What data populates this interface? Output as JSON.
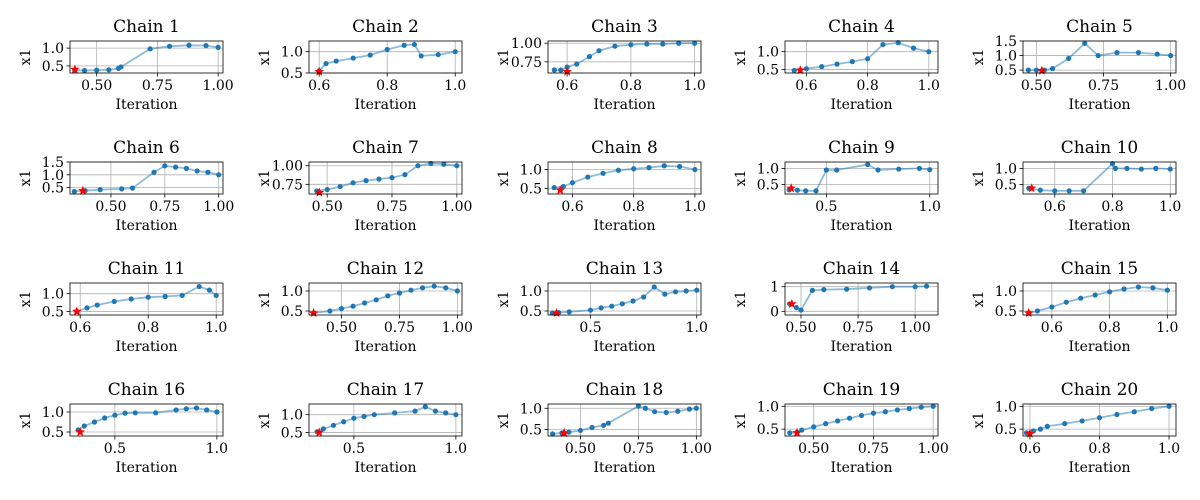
{
  "colors": {
    "series": "#1f77b4",
    "marker": "#ff0000",
    "grid": "#b0b0b0"
  },
  "chart_data": [
    {
      "type": "line",
      "title": "Chain 1",
      "xlabel": "Iteration",
      "ylabel": "x1",
      "xlim": [
        0.39,
        1.02
      ],
      "ylim": [
        0.3,
        1.2
      ],
      "xticks": [
        0.5,
        0.75,
        1.0
      ],
      "xtick_labels": [
        "0.50",
        "0.75",
        "1.00"
      ],
      "yticks": [
        0.5,
        1.0
      ],
      "ytick_labels": [
        "0.5",
        "1.0"
      ],
      "x": [
        0.41,
        0.45,
        0.5,
        0.55,
        0.59,
        0.6,
        0.72,
        0.8,
        0.88,
        0.95,
        1.0
      ],
      "y": [
        0.38,
        0.37,
        0.38,
        0.39,
        0.43,
        0.47,
        0.98,
        1.05,
        1.08,
        1.07,
        1.02
      ],
      "star": [
        0.41,
        0.4
      ]
    },
    {
      "type": "line",
      "title": "Chain 2",
      "xlabel": "Iteration",
      "ylabel": "x1",
      "xlim": [
        0.57,
        1.02
      ],
      "ylim": [
        0.5,
        1.25
      ],
      "xticks": [
        0.6,
        0.8,
        1.0
      ],
      "xtick_labels": [
        "0.6",
        "0.8",
        "1.0"
      ],
      "yticks": [
        0.5,
        1.0
      ],
      "ytick_labels": [
        "0.5",
        "1.0"
      ],
      "x": [
        0.6,
        0.62,
        0.65,
        0.7,
        0.75,
        0.8,
        0.85,
        0.88,
        0.9,
        0.95,
        1.0
      ],
      "y": [
        0.55,
        0.72,
        0.78,
        0.85,
        0.92,
        1.05,
        1.15,
        1.17,
        0.9,
        0.93,
        1.0
      ],
      "star": [
        0.6,
        0.53
      ]
    },
    {
      "type": "line",
      "title": "Chain 3",
      "xlabel": "Iteration",
      "ylabel": "x1",
      "xlim": [
        0.54,
        1.02
      ],
      "ylim": [
        0.6,
        1.03
      ],
      "xticks": [
        0.6,
        0.8,
        1.0
      ],
      "xtick_labels": [
        "0.6",
        "0.8",
        "1.0"
      ],
      "yticks": [
        0.75,
        1.0
      ],
      "ytick_labels": [
        "0.75",
        "1.00"
      ],
      "x": [
        0.56,
        0.58,
        0.6,
        0.63,
        0.67,
        0.7,
        0.75,
        0.8,
        0.85,
        0.9,
        0.95,
        1.0
      ],
      "y": [
        0.64,
        0.64,
        0.68,
        0.72,
        0.82,
        0.9,
        0.96,
        0.98,
        0.99,
        0.99,
        1.0,
        1.0
      ],
      "star": [
        0.6,
        0.62
      ]
    },
    {
      "type": "line",
      "title": "Chain 4",
      "xlabel": "Iteration",
      "ylabel": "x1",
      "xlim": [
        0.53,
        1.03
      ],
      "ylim": [
        0.4,
        1.3
      ],
      "xticks": [
        0.6,
        0.8,
        1.0
      ],
      "xtick_labels": [
        "0.6",
        "0.8",
        "1.0"
      ],
      "yticks": [
        0.5,
        1.0
      ],
      "ytick_labels": [
        "0.5",
        "1.0"
      ],
      "x": [
        0.56,
        0.6,
        0.65,
        0.7,
        0.75,
        0.8,
        0.85,
        0.9,
        0.95,
        1.0
      ],
      "y": [
        0.47,
        0.52,
        0.58,
        0.65,
        0.72,
        0.8,
        1.2,
        1.25,
        1.1,
        1.0
      ],
      "star": [
        0.58,
        0.48
      ]
    },
    {
      "type": "line",
      "title": "Chain 5",
      "xlabel": "Iteration",
      "ylabel": "x1",
      "xlim": [
        0.45,
        1.02
      ],
      "ylim": [
        0.4,
        1.5
      ],
      "xticks": [
        0.5,
        0.75,
        1.0
      ],
      "xtick_labels": [
        "0.50",
        "0.75",
        "1.00"
      ],
      "yticks": [
        0.5,
        1.0,
        1.5
      ],
      "ytick_labels": [
        "0.5",
        "1.0",
        "1.5"
      ],
      "x": [
        0.47,
        0.5,
        0.53,
        0.56,
        0.62,
        0.68,
        0.73,
        0.8,
        0.88,
        0.95,
        1.0
      ],
      "y": [
        0.5,
        0.5,
        0.5,
        0.55,
        0.9,
        1.42,
        1.0,
        1.1,
        1.1,
        1.05,
        1.0
      ],
      "star": [
        0.52,
        0.48
      ]
    },
    {
      "type": "line",
      "title": "Chain 6",
      "xlabel": "Iteration",
      "ylabel": "x1",
      "xlim": [
        0.31,
        1.02
      ],
      "ylim": [
        0.25,
        1.5
      ],
      "xticks": [
        0.5,
        0.75,
        1.0
      ],
      "xtick_labels": [
        "0.50",
        "0.75",
        "1.00"
      ],
      "yticks": [
        0.5,
        1.0,
        1.5
      ],
      "ytick_labels": [
        "0.5",
        "1.0",
        "1.5"
      ],
      "x": [
        0.33,
        0.38,
        0.45,
        0.55,
        0.6,
        0.7,
        0.75,
        0.8,
        0.85,
        0.9,
        0.95,
        1.0
      ],
      "y": [
        0.35,
        0.38,
        0.42,
        0.45,
        0.48,
        1.1,
        1.35,
        1.3,
        1.25,
        1.15,
        1.1,
        1.0
      ],
      "star": [
        0.37,
        0.38
      ]
    },
    {
      "type": "line",
      "title": "Chain 7",
      "xlabel": "Iteration",
      "ylabel": "x1",
      "xlim": [
        0.43,
        1.02
      ],
      "ylim": [
        0.62,
        1.05
      ],
      "xticks": [
        0.5,
        0.75,
        1.0
      ],
      "xtick_labels": [
        "0.50",
        "0.75",
        "1.00"
      ],
      "yticks": [
        0.75,
        1.0
      ],
      "ytick_labels": [
        "0.75",
        "1.00"
      ],
      "x": [
        0.46,
        0.5,
        0.55,
        0.6,
        0.65,
        0.7,
        0.75,
        0.8,
        0.85,
        0.9,
        0.95,
        1.0
      ],
      "y": [
        0.66,
        0.68,
        0.72,
        0.77,
        0.8,
        0.82,
        0.84,
        0.88,
        1.0,
        1.03,
        1.02,
        1.0
      ],
      "star": [
        0.47,
        0.64
      ]
    },
    {
      "type": "line",
      "title": "Chain 8",
      "xlabel": "Iteration",
      "ylabel": "x1",
      "xlim": [
        0.52,
        1.02
      ],
      "ylim": [
        0.35,
        1.2
      ],
      "xticks": [
        0.6,
        0.8,
        1.0
      ],
      "xtick_labels": [
        "0.6",
        "0.8",
        "1.0"
      ],
      "yticks": [
        0.5,
        1.0
      ],
      "ytick_labels": [
        "0.5",
        "1.0"
      ],
      "x": [
        0.54,
        0.57,
        0.6,
        0.65,
        0.7,
        0.75,
        0.8,
        0.85,
        0.9,
        0.95,
        1.0
      ],
      "y": [
        0.52,
        0.55,
        0.65,
        0.8,
        0.9,
        0.98,
        1.02,
        1.05,
        1.1,
        1.08,
        1.0
      ],
      "star": [
        0.56,
        0.45
      ]
    },
    {
      "type": "line",
      "title": "Chain 9",
      "xlabel": "Iteration",
      "ylabel": "x1",
      "xlim": [
        0.3,
        1.04
      ],
      "ylim": [
        0.2,
        1.2
      ],
      "xticks": [
        0.5,
        1.0
      ],
      "xtick_labels": [
        "0.5",
        "1.0"
      ],
      "yticks": [
        0.5,
        1.0
      ],
      "ytick_labels": [
        "0.5",
        "1.0"
      ],
      "x": [
        0.32,
        0.36,
        0.4,
        0.45,
        0.5,
        0.55,
        0.7,
        0.75,
        0.85,
        0.95,
        1.0
      ],
      "y": [
        0.33,
        0.32,
        0.3,
        0.3,
        0.95,
        0.95,
        1.12,
        0.95,
        0.98,
        1.0,
        0.96
      ],
      "star": [
        0.33,
        0.38
      ]
    },
    {
      "type": "line",
      "title": "Chain 10",
      "xlabel": "Iteration",
      "ylabel": "x1",
      "xlim": [
        0.49,
        1.02
      ],
      "ylim": [
        0.2,
        1.2
      ],
      "xticks": [
        0.6,
        0.8,
        1.0
      ],
      "xtick_labels": [
        "0.6",
        "0.8",
        "1.0"
      ],
      "yticks": [
        0.5,
        1.0
      ],
      "ytick_labels": [
        "0.5",
        "1.0"
      ],
      "x": [
        0.51,
        0.55,
        0.6,
        0.65,
        0.7,
        0.8,
        0.81,
        0.85,
        0.9,
        0.95,
        1.0
      ],
      "y": [
        0.38,
        0.32,
        0.3,
        0.3,
        0.3,
        1.15,
        1.0,
        1.0,
        0.98,
        1.0,
        0.98
      ],
      "star": [
        0.52,
        0.38
      ]
    },
    {
      "type": "line",
      "title": "Chain 11",
      "xlabel": "Iteration",
      "ylabel": "x1",
      "xlim": [
        0.57,
        1.02
      ],
      "ylim": [
        0.4,
        1.3
      ],
      "xticks": [
        0.6,
        0.8,
        1.0
      ],
      "xtick_labels": [
        "0.6",
        "0.8",
        "1.0"
      ],
      "yticks": [
        0.5,
        1.0
      ],
      "ytick_labels": [
        "0.5",
        "1.0"
      ],
      "x": [
        0.59,
        0.62,
        0.65,
        0.7,
        0.75,
        0.8,
        0.85,
        0.9,
        0.95,
        0.98,
        1.0
      ],
      "y": [
        0.5,
        0.6,
        0.68,
        0.78,
        0.85,
        0.9,
        0.92,
        0.95,
        1.2,
        1.1,
        0.95
      ],
      "star": [
        0.59,
        0.5
      ]
    },
    {
      "type": "line",
      "title": "Chain 12",
      "xlabel": "Iteration",
      "ylabel": "x1",
      "xlim": [
        0.36,
        1.02
      ],
      "ylim": [
        0.4,
        1.2
      ],
      "xticks": [
        0.5,
        0.75,
        1.0
      ],
      "xtick_labels": [
        "0.50",
        "0.75",
        "1.00"
      ],
      "yticks": [
        0.5,
        1.0
      ],
      "ytick_labels": [
        "0.5",
        "1.0"
      ],
      "x": [
        0.38,
        0.45,
        0.5,
        0.55,
        0.6,
        0.65,
        0.7,
        0.75,
        0.8,
        0.85,
        0.9,
        0.95,
        1.0
      ],
      "y": [
        0.45,
        0.5,
        0.56,
        0.62,
        0.7,
        0.78,
        0.88,
        0.95,
        1.02,
        1.08,
        1.12,
        1.08,
        1.0
      ],
      "star": [
        0.38,
        0.45
      ]
    },
    {
      "type": "line",
      "title": "Chain 13",
      "xlabel": "Iteration",
      "ylabel": "x1",
      "xlim": [
        0.3,
        1.02
      ],
      "ylim": [
        0.4,
        1.2
      ],
      "xticks": [
        0.5,
        1.0
      ],
      "xtick_labels": [
        "0.5",
        "1.0"
      ],
      "yticks": [
        0.5,
        1.0
      ],
      "ytick_labels": [
        "0.5",
        "1.0"
      ],
      "x": [
        0.32,
        0.35,
        0.4,
        0.5,
        0.55,
        0.6,
        0.65,
        0.7,
        0.75,
        0.8,
        0.85,
        0.9,
        0.95,
        1.0
      ],
      "y": [
        0.45,
        0.46,
        0.48,
        0.52,
        0.58,
        0.62,
        0.68,
        0.75,
        0.85,
        1.1,
        0.92,
        0.98,
        1.0,
        1.02
      ],
      "star": [
        0.34,
        0.45
      ]
    },
    {
      "type": "line",
      "title": "Chain 14",
      "xlabel": "Iteration",
      "ylabel": "x1",
      "xlim": [
        0.43,
        1.1
      ],
      "ylim": [
        -0.15,
        1.15
      ],
      "xticks": [
        0.5,
        0.75,
        1.0
      ],
      "xtick_labels": [
        "0.50",
        "0.75",
        "1.00"
      ],
      "yticks": [
        0.0,
        1.0
      ],
      "ytick_labels": [
        "0",
        "1"
      ],
      "x": [
        0.45,
        0.48,
        0.5,
        0.55,
        0.6,
        0.7,
        0.8,
        0.9,
        1.0,
        1.05
      ],
      "y": [
        0.3,
        0.15,
        0.05,
        0.85,
        0.88,
        0.9,
        0.95,
        1.0,
        1.0,
        1.02
      ],
      "star": [
        0.46,
        0.3
      ]
    },
    {
      "type": "line",
      "title": "Chain 15",
      "xlabel": "Iteration",
      "ylabel": "x1",
      "xlim": [
        0.5,
        1.03
      ],
      "ylim": [
        0.4,
        1.2
      ],
      "xticks": [
        0.6,
        0.8,
        1.0
      ],
      "xtick_labels": [
        "0.6",
        "0.8",
        "1.0"
      ],
      "yticks": [
        0.5,
        1.0
      ],
      "ytick_labels": [
        "0.5",
        "1.0"
      ],
      "x": [
        0.52,
        0.55,
        0.6,
        0.65,
        0.7,
        0.75,
        0.8,
        0.85,
        0.9,
        0.95,
        1.0
      ],
      "y": [
        0.45,
        0.5,
        0.6,
        0.72,
        0.82,
        0.9,
        0.98,
        1.05,
        1.1,
        1.08,
        1.02
      ],
      "star": [
        0.52,
        0.45
      ]
    },
    {
      "type": "line",
      "title": "Chain 16",
      "xlabel": "Iteration",
      "ylabel": "x1",
      "xlim": [
        0.28,
        1.03
      ],
      "ylim": [
        0.4,
        1.2
      ],
      "xticks": [
        0.5,
        1.0
      ],
      "xtick_labels": [
        "0.5",
        "1.0"
      ],
      "yticks": [
        0.5,
        1.0
      ],
      "ytick_labels": [
        "0.5",
        "1.0"
      ],
      "x": [
        0.32,
        0.35,
        0.4,
        0.45,
        0.5,
        0.55,
        0.6,
        0.7,
        0.8,
        0.85,
        0.9,
        0.95,
        1.0
      ],
      "y": [
        0.55,
        0.65,
        0.75,
        0.85,
        0.92,
        0.97,
        0.98,
        0.98,
        1.05,
        1.08,
        1.1,
        1.05,
        1.0
      ],
      "star": [
        0.33,
        0.5
      ]
    },
    {
      "type": "line",
      "title": "Chain 17",
      "xlabel": "Iteration",
      "ylabel": "x1",
      "xlim": [
        0.28,
        1.03
      ],
      "ylim": [
        0.4,
        1.3
      ],
      "xticks": [
        0.5,
        1.0
      ],
      "xtick_labels": [
        "0.5",
        "1.0"
      ],
      "yticks": [
        0.5,
        1.0
      ],
      "ytick_labels": [
        "0.5",
        "1.0"
      ],
      "x": [
        0.32,
        0.35,
        0.4,
        0.45,
        0.5,
        0.55,
        0.6,
        0.7,
        0.8,
        0.85,
        0.9,
        0.95,
        1.0
      ],
      "y": [
        0.52,
        0.6,
        0.7,
        0.8,
        0.9,
        0.95,
        1.0,
        1.05,
        1.1,
        1.22,
        1.1,
        1.05,
        1.0
      ],
      "star": [
        0.33,
        0.5
      ]
    },
    {
      "type": "line",
      "title": "Chain 18",
      "xlabel": "Iteration",
      "ylabel": "x1",
      "xlim": [
        0.36,
        1.02
      ],
      "ylim": [
        0.35,
        1.1
      ],
      "xticks": [
        0.5,
        0.75,
        1.0
      ],
      "xtick_labels": [
        "0.50",
        "0.75",
        "1.00"
      ],
      "yticks": [
        0.5,
        1.0
      ],
      "ytick_labels": [
        "0.5",
        "1.0"
      ],
      "x": [
        0.38,
        0.42,
        0.45,
        0.5,
        0.55,
        0.6,
        0.62,
        0.75,
        0.78,
        0.82,
        0.87,
        0.92,
        0.97,
        1.0
      ],
      "y": [
        0.4,
        0.42,
        0.44,
        0.48,
        0.55,
        0.6,
        0.65,
        1.05,
        1.0,
        0.92,
        0.9,
        0.93,
        0.98,
        1.0
      ],
      "star": [
        0.43,
        0.42
      ]
    },
    {
      "type": "line",
      "title": "Chain 19",
      "xlabel": "Iteration",
      "ylabel": "x1",
      "xlim": [
        0.38,
        1.02
      ],
      "ylim": [
        0.35,
        1.05
      ],
      "xticks": [
        0.5,
        0.75,
        1.0
      ],
      "xtick_labels": [
        "0.50",
        "0.75",
        "1.00"
      ],
      "yticks": [
        0.5,
        1.0
      ],
      "ytick_labels": [
        "0.5",
        "1.0"
      ],
      "x": [
        0.4,
        0.43,
        0.45,
        0.5,
        0.55,
        0.6,
        0.65,
        0.7,
        0.75,
        0.8,
        0.85,
        0.9,
        0.95,
        1.0
      ],
      "y": [
        0.42,
        0.43,
        0.48,
        0.55,
        0.62,
        0.68,
        0.74,
        0.8,
        0.85,
        0.88,
        0.92,
        0.95,
        0.98,
        1.0
      ],
      "star": [
        0.43,
        0.42
      ]
    },
    {
      "type": "line",
      "title": "Chain 20",
      "xlabel": "Iteration",
      "ylabel": "x1",
      "xlim": [
        0.58,
        1.02
      ],
      "ylim": [
        0.35,
        1.05
      ],
      "xticks": [
        0.6,
        0.8,
        1.0
      ],
      "xtick_labels": [
        "0.6",
        "0.8",
        "1.0"
      ],
      "yticks": [
        0.5,
        1.0
      ],
      "ytick_labels": [
        "0.5",
        "1.0"
      ],
      "x": [
        0.59,
        0.61,
        0.63,
        0.65,
        0.7,
        0.75,
        0.8,
        0.85,
        0.9,
        0.95,
        1.0
      ],
      "y": [
        0.42,
        0.46,
        0.5,
        0.56,
        0.62,
        0.68,
        0.75,
        0.82,
        0.88,
        0.95,
        1.0
      ],
      "star": [
        0.6,
        0.4
      ]
    }
  ]
}
